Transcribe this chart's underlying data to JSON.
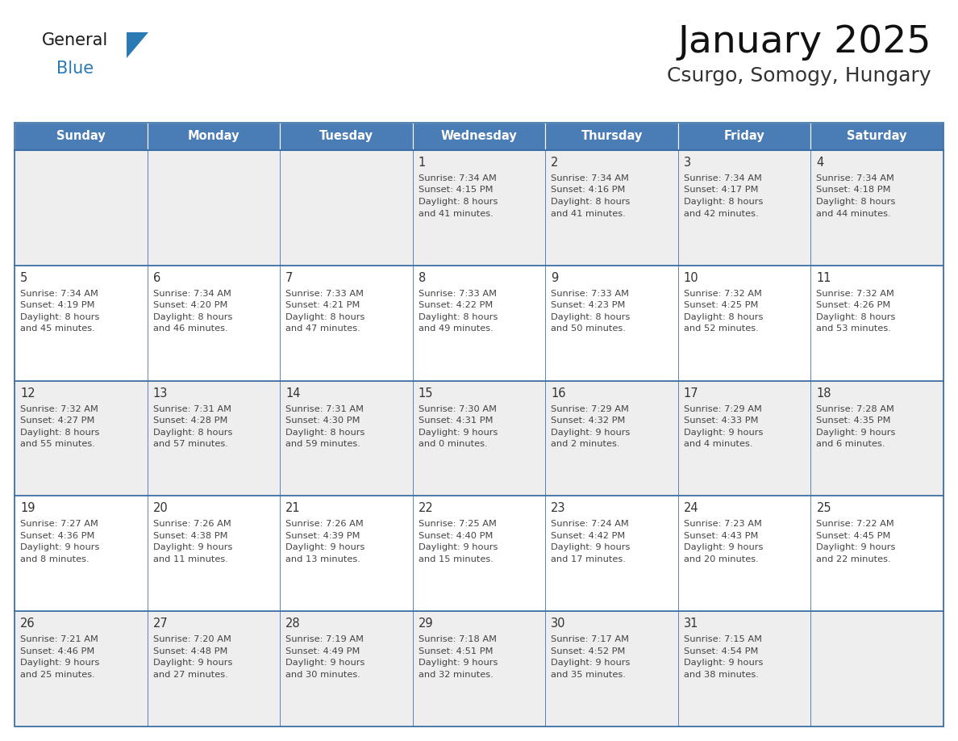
{
  "title": "January 2025",
  "subtitle": "Csurgo, Somogy, Hungary",
  "header_bg": "#4A7DB5",
  "header_text_color": "#FFFFFF",
  "header_font_size": 10.5,
  "day_names": [
    "Sunday",
    "Monday",
    "Tuesday",
    "Wednesday",
    "Thursday",
    "Friday",
    "Saturday"
  ],
  "title_font_size": 34,
  "subtitle_font_size": 18,
  "cell_text_color": "#444444",
  "day_num_color": "#333333",
  "line_color": "#3a6ea5",
  "cell_info_font_size": 8.2,
  "day_num_font_size": 10.5,
  "logo_general_color": "#1a1a1a",
  "logo_blue_color": "#2a7ab5",
  "odd_row_bg": "#eeeeee",
  "even_row_bg": "#ffffff",
  "calendar_data": [
    [
      {
        "day": "",
        "info": []
      },
      {
        "day": "",
        "info": []
      },
      {
        "day": "",
        "info": []
      },
      {
        "day": "1",
        "info": [
          "Sunrise: 7:34 AM",
          "Sunset: 4:15 PM",
          "Daylight: 8 hours",
          "and 41 minutes."
        ]
      },
      {
        "day": "2",
        "info": [
          "Sunrise: 7:34 AM",
          "Sunset: 4:16 PM",
          "Daylight: 8 hours",
          "and 41 minutes."
        ]
      },
      {
        "day": "3",
        "info": [
          "Sunrise: 7:34 AM",
          "Sunset: 4:17 PM",
          "Daylight: 8 hours",
          "and 42 minutes."
        ]
      },
      {
        "day": "4",
        "info": [
          "Sunrise: 7:34 AM",
          "Sunset: 4:18 PM",
          "Daylight: 8 hours",
          "and 44 minutes."
        ]
      }
    ],
    [
      {
        "day": "5",
        "info": [
          "Sunrise: 7:34 AM",
          "Sunset: 4:19 PM",
          "Daylight: 8 hours",
          "and 45 minutes."
        ]
      },
      {
        "day": "6",
        "info": [
          "Sunrise: 7:34 AM",
          "Sunset: 4:20 PM",
          "Daylight: 8 hours",
          "and 46 minutes."
        ]
      },
      {
        "day": "7",
        "info": [
          "Sunrise: 7:33 AM",
          "Sunset: 4:21 PM",
          "Daylight: 8 hours",
          "and 47 minutes."
        ]
      },
      {
        "day": "8",
        "info": [
          "Sunrise: 7:33 AM",
          "Sunset: 4:22 PM",
          "Daylight: 8 hours",
          "and 49 minutes."
        ]
      },
      {
        "day": "9",
        "info": [
          "Sunrise: 7:33 AM",
          "Sunset: 4:23 PM",
          "Daylight: 8 hours",
          "and 50 minutes."
        ]
      },
      {
        "day": "10",
        "info": [
          "Sunrise: 7:32 AM",
          "Sunset: 4:25 PM",
          "Daylight: 8 hours",
          "and 52 minutes."
        ]
      },
      {
        "day": "11",
        "info": [
          "Sunrise: 7:32 AM",
          "Sunset: 4:26 PM",
          "Daylight: 8 hours",
          "and 53 minutes."
        ]
      }
    ],
    [
      {
        "day": "12",
        "info": [
          "Sunrise: 7:32 AM",
          "Sunset: 4:27 PM",
          "Daylight: 8 hours",
          "and 55 minutes."
        ]
      },
      {
        "day": "13",
        "info": [
          "Sunrise: 7:31 AM",
          "Sunset: 4:28 PM",
          "Daylight: 8 hours",
          "and 57 minutes."
        ]
      },
      {
        "day": "14",
        "info": [
          "Sunrise: 7:31 AM",
          "Sunset: 4:30 PM",
          "Daylight: 8 hours",
          "and 59 minutes."
        ]
      },
      {
        "day": "15",
        "info": [
          "Sunrise: 7:30 AM",
          "Sunset: 4:31 PM",
          "Daylight: 9 hours",
          "and 0 minutes."
        ]
      },
      {
        "day": "16",
        "info": [
          "Sunrise: 7:29 AM",
          "Sunset: 4:32 PM",
          "Daylight: 9 hours",
          "and 2 minutes."
        ]
      },
      {
        "day": "17",
        "info": [
          "Sunrise: 7:29 AM",
          "Sunset: 4:33 PM",
          "Daylight: 9 hours",
          "and 4 minutes."
        ]
      },
      {
        "day": "18",
        "info": [
          "Sunrise: 7:28 AM",
          "Sunset: 4:35 PM",
          "Daylight: 9 hours",
          "and 6 minutes."
        ]
      }
    ],
    [
      {
        "day": "19",
        "info": [
          "Sunrise: 7:27 AM",
          "Sunset: 4:36 PM",
          "Daylight: 9 hours",
          "and 8 minutes."
        ]
      },
      {
        "day": "20",
        "info": [
          "Sunrise: 7:26 AM",
          "Sunset: 4:38 PM",
          "Daylight: 9 hours",
          "and 11 minutes."
        ]
      },
      {
        "day": "21",
        "info": [
          "Sunrise: 7:26 AM",
          "Sunset: 4:39 PM",
          "Daylight: 9 hours",
          "and 13 minutes."
        ]
      },
      {
        "day": "22",
        "info": [
          "Sunrise: 7:25 AM",
          "Sunset: 4:40 PM",
          "Daylight: 9 hours",
          "and 15 minutes."
        ]
      },
      {
        "day": "23",
        "info": [
          "Sunrise: 7:24 AM",
          "Sunset: 4:42 PM",
          "Daylight: 9 hours",
          "and 17 minutes."
        ]
      },
      {
        "day": "24",
        "info": [
          "Sunrise: 7:23 AM",
          "Sunset: 4:43 PM",
          "Daylight: 9 hours",
          "and 20 minutes."
        ]
      },
      {
        "day": "25",
        "info": [
          "Sunrise: 7:22 AM",
          "Sunset: 4:45 PM",
          "Daylight: 9 hours",
          "and 22 minutes."
        ]
      }
    ],
    [
      {
        "day": "26",
        "info": [
          "Sunrise: 7:21 AM",
          "Sunset: 4:46 PM",
          "Daylight: 9 hours",
          "and 25 minutes."
        ]
      },
      {
        "day": "27",
        "info": [
          "Sunrise: 7:20 AM",
          "Sunset: 4:48 PM",
          "Daylight: 9 hours",
          "and 27 minutes."
        ]
      },
      {
        "day": "28",
        "info": [
          "Sunrise: 7:19 AM",
          "Sunset: 4:49 PM",
          "Daylight: 9 hours",
          "and 30 minutes."
        ]
      },
      {
        "day": "29",
        "info": [
          "Sunrise: 7:18 AM",
          "Sunset: 4:51 PM",
          "Daylight: 9 hours",
          "and 32 minutes."
        ]
      },
      {
        "day": "30",
        "info": [
          "Sunrise: 7:17 AM",
          "Sunset: 4:52 PM",
          "Daylight: 9 hours",
          "and 35 minutes."
        ]
      },
      {
        "day": "31",
        "info": [
          "Sunrise: 7:15 AM",
          "Sunset: 4:54 PM",
          "Daylight: 9 hours",
          "and 38 minutes."
        ]
      },
      {
        "day": "",
        "info": []
      }
    ]
  ]
}
